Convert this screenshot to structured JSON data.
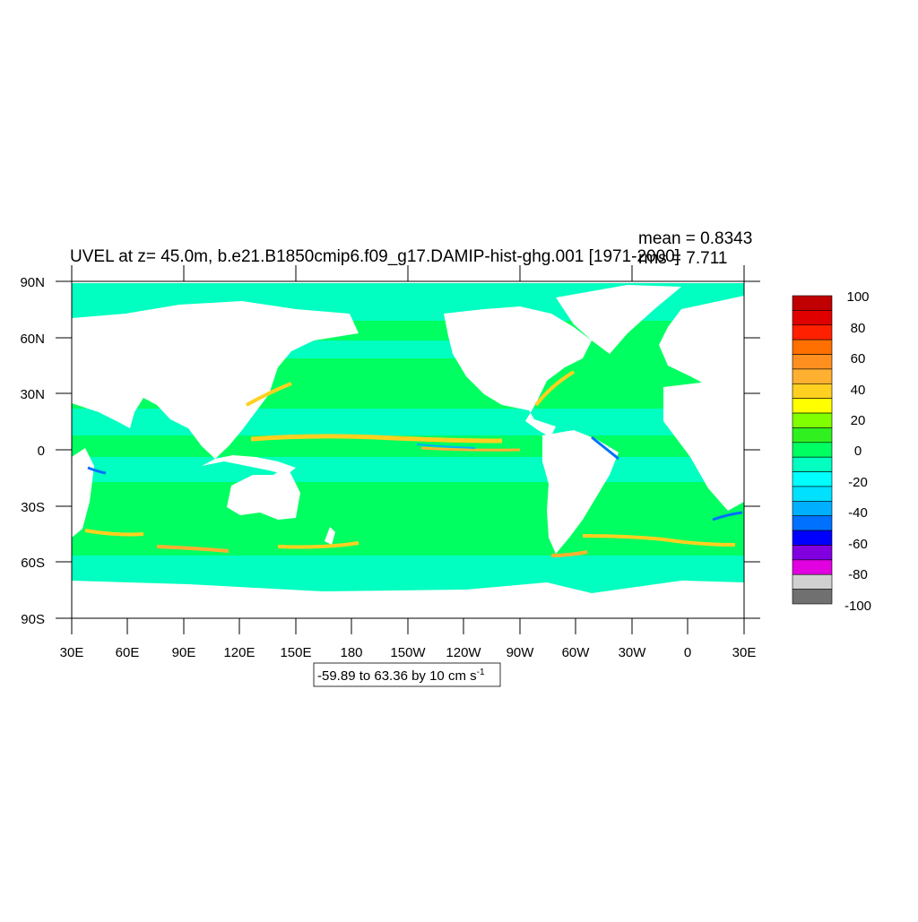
{
  "title": "UVEL at z=  45.0m, b.e21.B1850cmip6.f09_g17.DAMIP-hist-ghg.001 [1971-2000]",
  "stats": {
    "mean": "mean = 0.8343",
    "rms": "rms = 7.711"
  },
  "axes": {
    "y_ticks": [
      "90N",
      "60N",
      "30N",
      "0",
      "30S",
      "60S",
      "90S"
    ],
    "x_ticks": [
      "30E",
      "60E",
      "90E",
      "120E",
      "150E",
      "180",
      "150W",
      "120W",
      "90W",
      "60W",
      "30W",
      "0",
      "30E"
    ]
  },
  "contour_info": {
    "text": "-59.89 to 63.36 by 10 cm s",
    "superscript": "-1"
  },
  "colorbar": {
    "labels": [
      "100",
      "80",
      "60",
      "40",
      "20",
      "0",
      "-20",
      "-40",
      "-60",
      "-80",
      "-100"
    ],
    "colors": [
      "#c00000",
      "#e00000",
      "#ff2000",
      "#ff7000",
      "#ff9020",
      "#ffb030",
      "#ffd020",
      "#ffff00",
      "#80ff00",
      "#30f020",
      "#00ff60",
      "#00ffc0",
      "#00ffff",
      "#00e0ff",
      "#00b0ff",
      "#0070ff",
      "#0000ff",
      "#8000e0",
      "#e000e0",
      "#d0d0d0",
      "#707070"
    ]
  },
  "map": {
    "variable": "UVEL",
    "depth": "45.0m",
    "colors": {
      "ocean_base": "#00ff60",
      "weak_negative": "#00ffc0",
      "land": "#ffffff",
      "jet_positive": "#ffd020",
      "current_negative": "#0070ff"
    }
  }
}
